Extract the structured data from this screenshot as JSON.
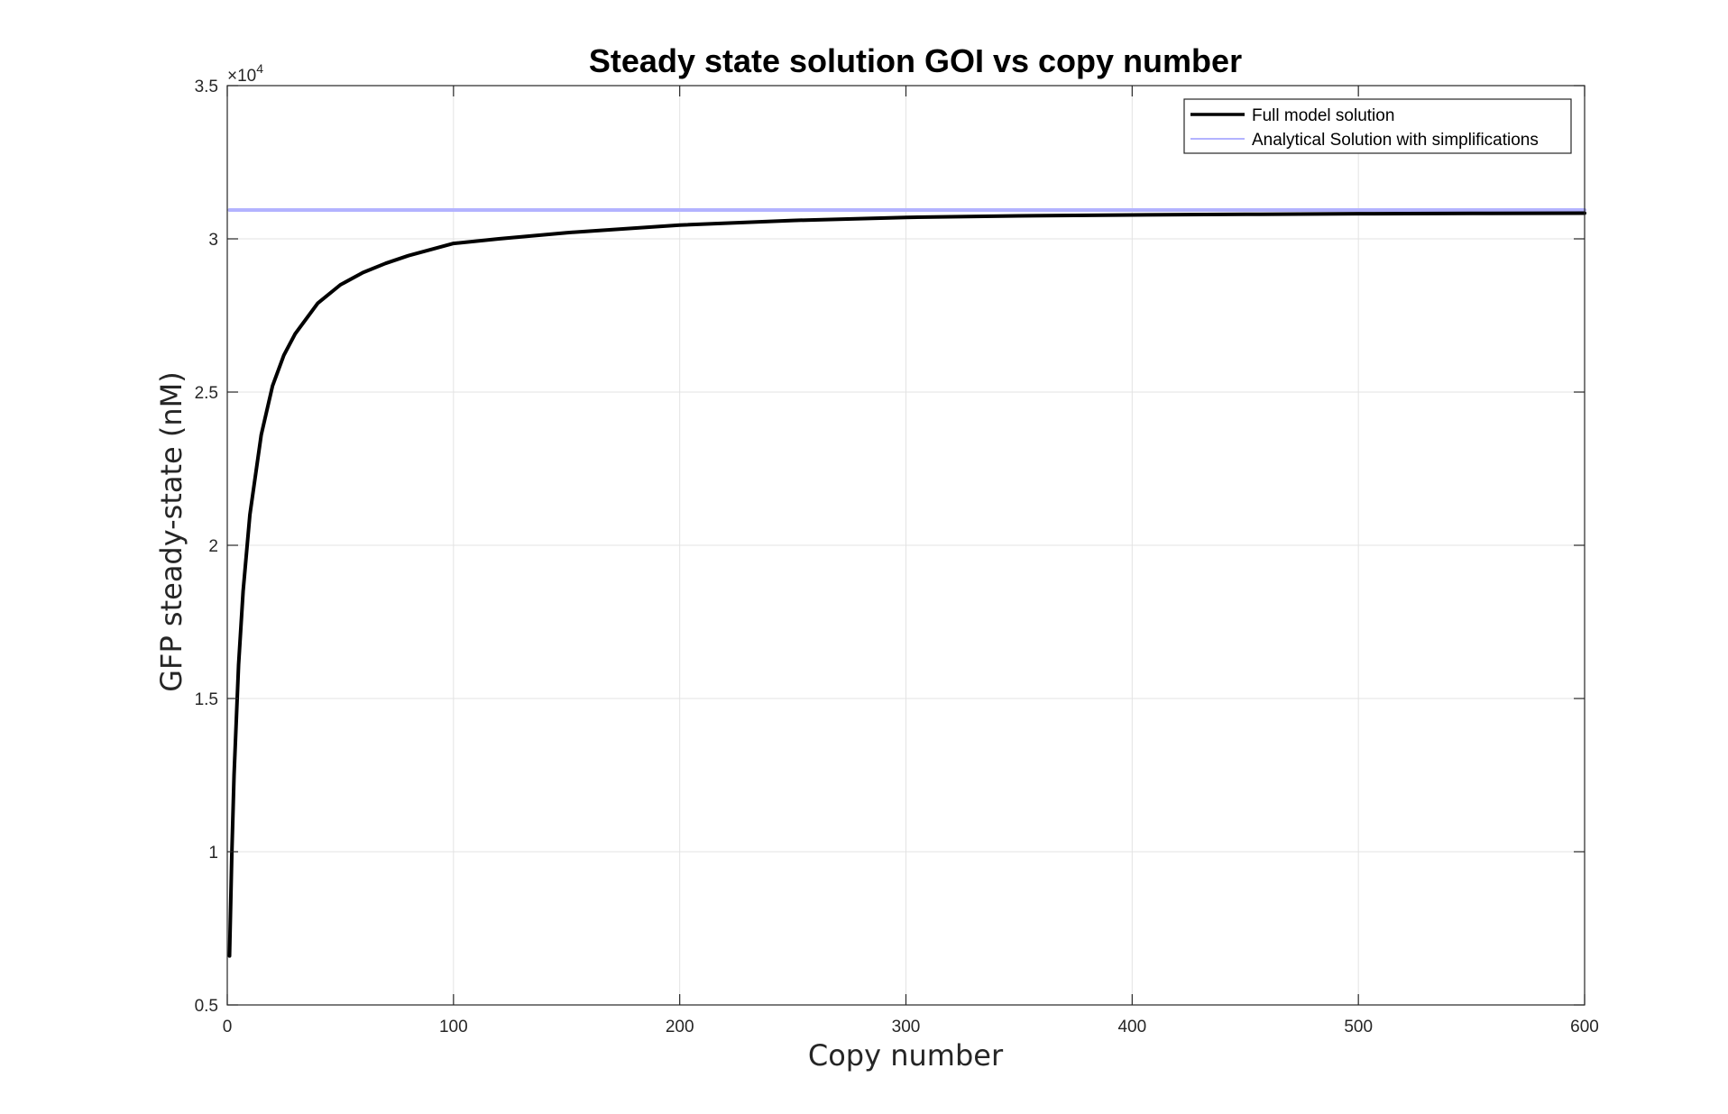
{
  "chart_data": {
    "type": "line",
    "title": "Steady state solution GOI vs copy number",
    "xlabel": "Copy number",
    "ylabel": "GFP steady-state (nM)",
    "xlim": [
      0,
      600
    ],
    "ylim": [
      0.5,
      3.5
    ],
    "y_multiplier_label": "×10",
    "y_multiplier_exponent": "4",
    "x_ticks": [
      "0",
      "100",
      "200",
      "300",
      "400",
      "500",
      "600"
    ],
    "y_ticks": [
      "0.5",
      "1",
      "1.5",
      "2",
      "2.5",
      "3",
      "3.5"
    ],
    "grid": true,
    "legend_position": "top-right",
    "series": [
      {
        "name": "Full model solution",
        "color": "#000000",
        "x": [
          1,
          2,
          3,
          5,
          7,
          10,
          15,
          20,
          25,
          30,
          40,
          50,
          60,
          70,
          80,
          100,
          120,
          150,
          200,
          250,
          300,
          350,
          400,
          450,
          500,
          550,
          600
        ],
        "y": [
          0.66,
          0.99,
          1.25,
          1.61,
          1.85,
          2.1,
          2.36,
          2.52,
          2.62,
          2.69,
          2.79,
          2.85,
          2.89,
          2.92,
          2.945,
          2.985,
          3.0,
          3.02,
          3.045,
          3.06,
          3.07,
          3.075,
          3.078,
          3.08,
          3.082,
          3.083,
          3.084
        ]
      },
      {
        "name": "Analytical Solution with simplifications",
        "color": "#b3b3ff",
        "x": [
          1,
          600
        ],
        "y": [
          3.094,
          3.094
        ]
      }
    ]
  }
}
